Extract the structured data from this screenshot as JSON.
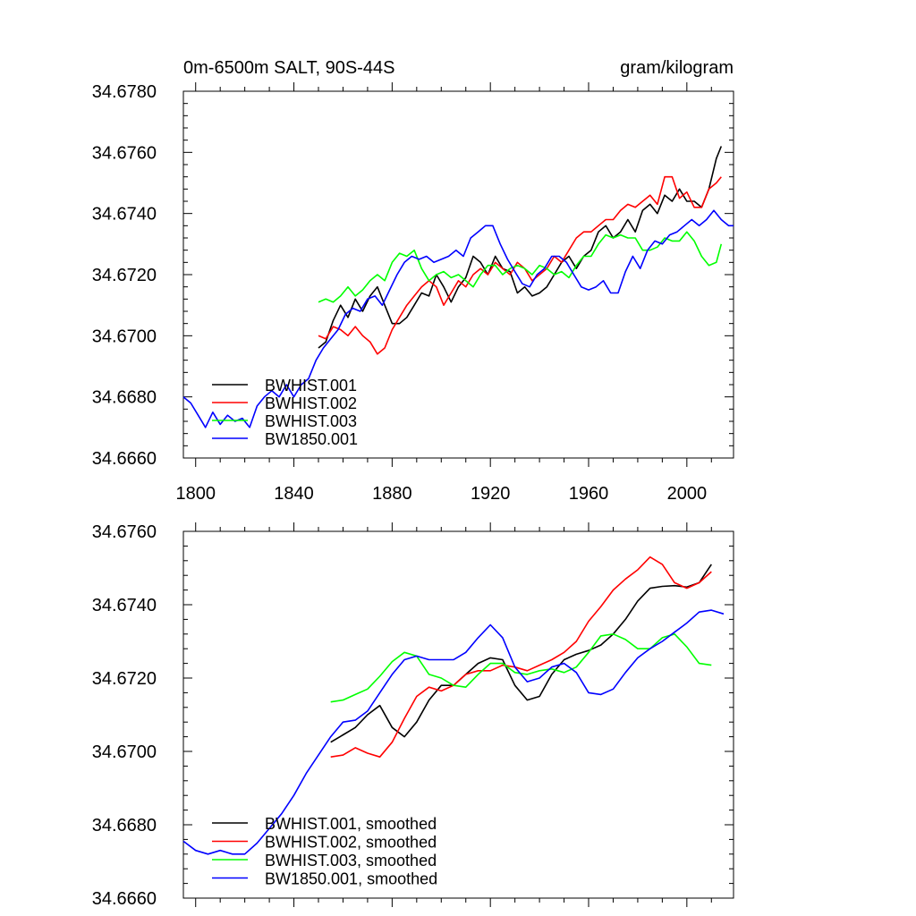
{
  "chart_data": [
    {
      "type": "line",
      "title_left": "0m-6500m SALT, 90S-44S",
      "title_right": "gram/kilogram",
      "xlim": [
        1795,
        2019
      ],
      "ylim": [
        34.666,
        34.678
      ],
      "xticks": [
        1800,
        1840,
        1880,
        1920,
        1960,
        2000
      ],
      "yticks": [
        34.666,
        34.668,
        34.67,
        34.672,
        34.674,
        34.676,
        34.678
      ],
      "ytick_labels": [
        "34.6660",
        "34.6680",
        "34.6700",
        "34.6720",
        "34.6740",
        "34.6760",
        "34.6780"
      ],
      "legend_position": "bottom-left",
      "series": [
        {
          "name": "BWHIST.001",
          "color": "#000000",
          "x": [
            1850,
            1853,
            1856,
            1859,
            1862,
            1865,
            1868,
            1871,
            1874,
            1877,
            1880,
            1883,
            1886,
            1889,
            1892,
            1895,
            1898,
            1901,
            1904,
            1907,
            1910,
            1913,
            1916,
            1919,
            1922,
            1925,
            1928,
            1931,
            1934,
            1937,
            1940,
            1943,
            1946,
            1949,
            1952,
            1955,
            1958,
            1961,
            1964,
            1967,
            1970,
            1973,
            1976,
            1979,
            1982,
            1985,
            1988,
            1991,
            1994,
            1997,
            2000,
            2003,
            2006,
            2009,
            2012,
            2014
          ],
          "values": [
            34.6696,
            34.6698,
            34.6705,
            34.671,
            34.6706,
            34.6712,
            34.6708,
            34.6713,
            34.6716,
            34.671,
            34.6704,
            34.6704,
            34.6706,
            34.671,
            34.6714,
            34.6713,
            34.672,
            34.6716,
            34.6711,
            34.6716,
            34.6719,
            34.6726,
            34.6724,
            34.672,
            34.6726,
            34.6722,
            34.6721,
            34.6714,
            34.6716,
            34.6713,
            34.6714,
            34.6716,
            34.672,
            34.6724,
            34.6726,
            34.6722,
            34.6726,
            34.6728,
            34.6734,
            34.6736,
            34.6732,
            34.6734,
            34.6738,
            34.6734,
            34.6741,
            34.6743,
            34.674,
            34.6746,
            34.6744,
            34.6748,
            34.6744,
            34.6744,
            34.6742,
            34.6748,
            34.6758,
            34.6762
          ]
        },
        {
          "name": "BWHIST.002",
          "color": "#ff0000",
          "x": [
            1850,
            1853,
            1856,
            1859,
            1862,
            1865,
            1868,
            1871,
            1874,
            1877,
            1880,
            1883,
            1886,
            1889,
            1892,
            1895,
            1898,
            1901,
            1904,
            1907,
            1910,
            1913,
            1916,
            1919,
            1922,
            1925,
            1928,
            1931,
            1934,
            1937,
            1940,
            1943,
            1946,
            1949,
            1952,
            1955,
            1958,
            1961,
            1964,
            1967,
            1970,
            1973,
            1976,
            1979,
            1982,
            1985,
            1988,
            1991,
            1994,
            1997,
            2000,
            2003,
            2006,
            2009,
            2012,
            2014
          ],
          "values": [
            34.67,
            34.6699,
            34.6703,
            34.6702,
            34.67,
            34.6703,
            34.67,
            34.6698,
            34.6694,
            34.6696,
            34.6702,
            34.6706,
            34.671,
            34.6713,
            34.6716,
            34.6718,
            34.6716,
            34.671,
            34.6714,
            34.6718,
            34.6716,
            34.672,
            34.6722,
            34.672,
            34.6724,
            34.6722,
            34.672,
            34.6724,
            34.6722,
            34.6718,
            34.672,
            34.6722,
            34.6726,
            34.6724,
            34.6728,
            34.6732,
            34.6734,
            34.6734,
            34.6736,
            34.6738,
            34.6738,
            34.6741,
            34.6743,
            34.6742,
            34.6744,
            34.6746,
            34.6743,
            34.6752,
            34.6752,
            34.6745,
            34.6747,
            34.6742,
            34.6742,
            34.6748,
            34.675,
            34.6752
          ]
        },
        {
          "name": "BWHIST.003",
          "color": "#00ff00",
          "x": [
            1850,
            1853,
            1856,
            1859,
            1862,
            1865,
            1868,
            1871,
            1874,
            1877,
            1880,
            1883,
            1886,
            1889,
            1892,
            1895,
            1898,
            1901,
            1904,
            1907,
            1910,
            1913,
            1916,
            1919,
            1922,
            1925,
            1928,
            1931,
            1934,
            1937,
            1940,
            1943,
            1946,
            1949,
            1952,
            1955,
            1958,
            1961,
            1964,
            1967,
            1970,
            1973,
            1976,
            1979,
            1982,
            1985,
            1988,
            1991,
            1994,
            1997,
            2000,
            2003,
            2006,
            2009,
            2012,
            2014
          ],
          "values": [
            34.6711,
            34.6712,
            34.6711,
            34.6713,
            34.6716,
            34.6713,
            34.6715,
            34.6718,
            34.672,
            34.6718,
            34.6724,
            34.6727,
            34.6726,
            34.6728,
            34.6722,
            34.6718,
            34.672,
            34.6721,
            34.6719,
            34.672,
            34.6718,
            34.6716,
            34.672,
            34.6723,
            34.6723,
            34.672,
            34.6722,
            34.6723,
            34.6722,
            34.672,
            34.6723,
            34.6722,
            34.672,
            34.6721,
            34.6719,
            34.6723,
            34.6726,
            34.6726,
            34.673,
            34.6733,
            34.6732,
            34.6733,
            34.6732,
            34.6732,
            34.6728,
            34.6728,
            34.6729,
            34.6732,
            34.6731,
            34.6731,
            34.6734,
            34.6731,
            34.6726,
            34.6723,
            34.6724,
            34.673
          ]
        },
        {
          "name": "BW1850.001",
          "color": "#0000ff",
          "x": [
            1795,
            1798,
            1801,
            1804,
            1807,
            1810,
            1813,
            1816,
            1819,
            1822,
            1825,
            1828,
            1831,
            1834,
            1837,
            1840,
            1843,
            1846,
            1849,
            1852,
            1855,
            1858,
            1861,
            1864,
            1867,
            1870,
            1873,
            1876,
            1879,
            1882,
            1885,
            1888,
            1891,
            1894,
            1897,
            1900,
            1903,
            1906,
            1909,
            1912,
            1915,
            1918,
            1921,
            1924,
            1927,
            1930,
            1933,
            1936,
            1939,
            1942,
            1945,
            1948,
            1951,
            1954,
            1957,
            1960,
            1963,
            1966,
            1969,
            1972,
            1975,
            1978,
            1981,
            1984,
            1987,
            1990,
            1993,
            1996,
            1999,
            2002,
            2005,
            2008,
            2011,
            2014,
            2017,
            2019
          ],
          "values": [
            34.668,
            34.6678,
            34.6674,
            34.667,
            34.6675,
            34.6671,
            34.6674,
            34.6672,
            34.6673,
            34.667,
            34.6677,
            34.668,
            34.6682,
            34.668,
            34.6684,
            34.668,
            34.6684,
            34.6686,
            34.6692,
            34.6696,
            34.6699,
            34.6702,
            34.6707,
            34.6709,
            34.6708,
            34.6712,
            34.6713,
            34.671,
            34.6715,
            34.672,
            34.6724,
            34.6726,
            34.6725,
            34.6726,
            34.6724,
            34.6725,
            34.6726,
            34.6728,
            34.6726,
            34.6732,
            34.6734,
            34.6736,
            34.6736,
            34.673,
            34.6725,
            34.6721,
            34.6717,
            34.6716,
            34.672,
            34.6722,
            34.6726,
            34.6726,
            34.6724,
            34.672,
            34.6716,
            34.6715,
            34.6716,
            34.6718,
            34.6714,
            34.6714,
            34.6721,
            34.6726,
            34.6722,
            34.6728,
            34.6731,
            34.673,
            34.6733,
            34.6734,
            34.6736,
            34.6738,
            34.6736,
            34.6738,
            34.6741,
            34.6738,
            34.6736,
            34.6736
          ]
        }
      ]
    },
    {
      "type": "line",
      "xlim": [
        1795,
        2019
      ],
      "ylim": [
        34.666,
        34.676
      ],
      "xticks": [
        1800,
        1840,
        1880,
        1920,
        1960,
        2000
      ],
      "yticks": [
        34.666,
        34.668,
        34.67,
        34.672,
        34.674,
        34.676
      ],
      "ytick_labels": [
        "34.6660",
        "34.6680",
        "34.6700",
        "34.6720",
        "34.6740",
        "34.6760"
      ],
      "legend_position": "bottom-left",
      "series": [
        {
          "name": "BWHIST.001, smoothed",
          "color": "#000000",
          "x": [
            1855,
            1860,
            1865,
            1870,
            1875,
            1880,
            1885,
            1890,
            1895,
            1900,
            1905,
            1910,
            1915,
            1920,
            1925,
            1930,
            1935,
            1940,
            1945,
            1950,
            1955,
            1960,
            1965,
            1970,
            1975,
            1980,
            1985,
            1990,
            1995,
            2000,
            2005,
            2010
          ],
          "values": [
            34.67025,
            34.67045,
            34.67065,
            34.671,
            34.67125,
            34.67065,
            34.6704,
            34.6708,
            34.6714,
            34.6718,
            34.6718,
            34.6721,
            34.6724,
            34.67255,
            34.6725,
            34.6718,
            34.6714,
            34.6715,
            34.6721,
            34.6725,
            34.67265,
            34.67275,
            34.6729,
            34.6732,
            34.6736,
            34.6741,
            34.67445,
            34.6745,
            34.67452,
            34.67448,
            34.6746,
            34.6751
          ]
        },
        {
          "name": "BWHIST.002, smoothed",
          "color": "#ff0000",
          "x": [
            1855,
            1860,
            1865,
            1870,
            1875,
            1880,
            1885,
            1890,
            1895,
            1900,
            1905,
            1910,
            1915,
            1920,
            1925,
            1930,
            1935,
            1940,
            1945,
            1950,
            1955,
            1960,
            1965,
            1970,
            1975,
            1980,
            1985,
            1990,
            1995,
            2000,
            2005,
            2010
          ],
          "values": [
            34.66985,
            34.6699,
            34.6701,
            34.66995,
            34.66985,
            34.67025,
            34.6709,
            34.6715,
            34.67175,
            34.67165,
            34.6718,
            34.6721,
            34.6722,
            34.6722,
            34.67235,
            34.6723,
            34.6722,
            34.67235,
            34.6725,
            34.6727,
            34.673,
            34.67355,
            34.67395,
            34.6744,
            34.6747,
            34.67495,
            34.6753,
            34.6751,
            34.6746,
            34.67445,
            34.6746,
            34.6749
          ]
        },
        {
          "name": "BWHIST.003, smoothed",
          "color": "#00ff00",
          "x": [
            1855,
            1860,
            1865,
            1870,
            1875,
            1880,
            1885,
            1890,
            1895,
            1900,
            1905,
            1910,
            1915,
            1920,
            1925,
            1930,
            1935,
            1940,
            1945,
            1950,
            1955,
            1960,
            1965,
            1970,
            1975,
            1980,
            1985,
            1990,
            1995,
            2000,
            2005,
            2010
          ],
          "values": [
            34.67135,
            34.6714,
            34.67155,
            34.6717,
            34.67205,
            34.67245,
            34.6727,
            34.6726,
            34.6721,
            34.672,
            34.6718,
            34.67175,
            34.6721,
            34.6724,
            34.6724,
            34.67215,
            34.6721,
            34.6722,
            34.67225,
            34.67215,
            34.6723,
            34.6727,
            34.67315,
            34.6732,
            34.67305,
            34.6728,
            34.6728,
            34.6731,
            34.6732,
            34.67285,
            34.6724,
            34.67235
          ]
        },
        {
          "name": "BW1850.001, smoothed",
          "color": "#0000ff",
          "x": [
            1795,
            1800,
            1805,
            1810,
            1815,
            1820,
            1825,
            1830,
            1835,
            1840,
            1845,
            1850,
            1855,
            1860,
            1865,
            1870,
            1875,
            1880,
            1885,
            1890,
            1895,
            1900,
            1905,
            1910,
            1915,
            1920,
            1925,
            1930,
            1935,
            1940,
            1945,
            1950,
            1955,
            1960,
            1965,
            1970,
            1975,
            1980,
            1985,
            1990,
            1995,
            2000,
            2005,
            2010,
            2015
          ],
          "values": [
            34.66755,
            34.6673,
            34.6672,
            34.6673,
            34.6672,
            34.6672,
            34.6675,
            34.6679,
            34.6683,
            34.6688,
            34.6694,
            34.6699,
            34.6704,
            34.6708,
            34.67085,
            34.6711,
            34.6716,
            34.6721,
            34.6725,
            34.6726,
            34.6725,
            34.6725,
            34.6725,
            34.6727,
            34.6731,
            34.67345,
            34.6731,
            34.6723,
            34.6719,
            34.672,
            34.6723,
            34.6724,
            34.67215,
            34.6716,
            34.67155,
            34.6717,
            34.67215,
            34.67255,
            34.6728,
            34.673,
            34.67325,
            34.6735,
            34.6738,
            34.67385,
            34.67375
          ]
        }
      ]
    }
  ]
}
